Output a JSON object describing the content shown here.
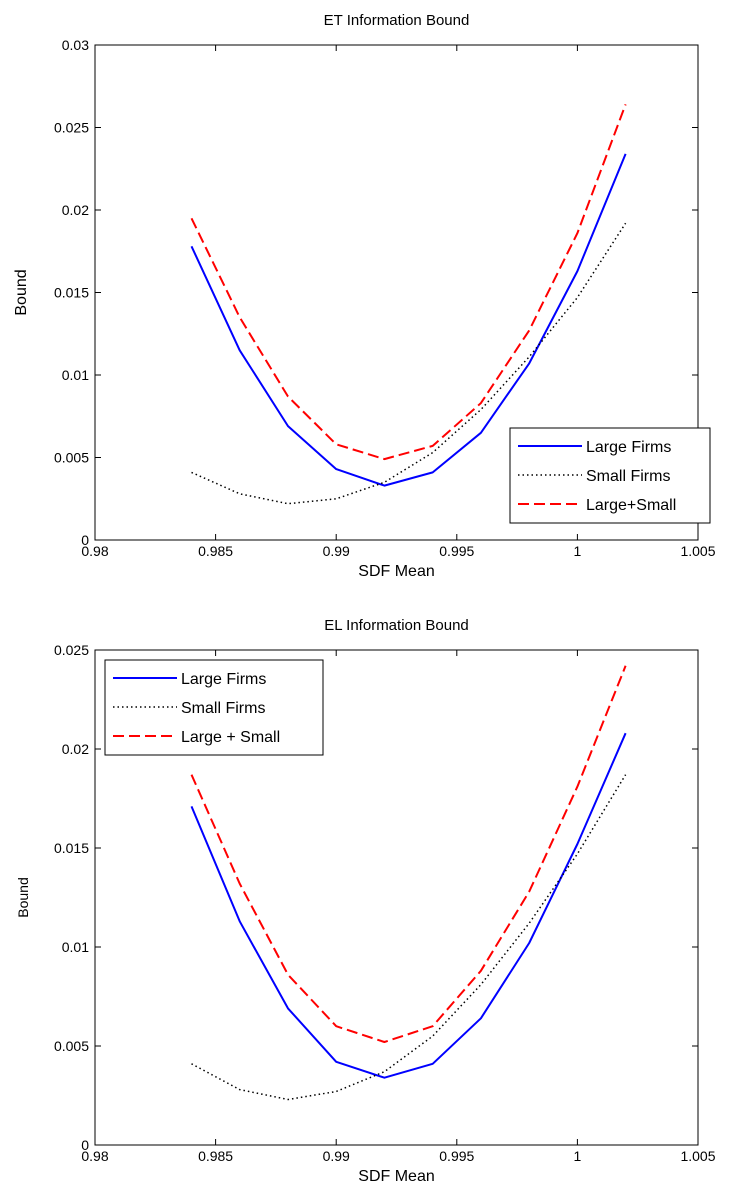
{
  "chart_data": [
    {
      "type": "line",
      "title": "ET Information Bound",
      "xlabel": "SDF Mean",
      "ylabel": "Bound",
      "xlim": [
        0.98,
        1.005
      ],
      "ylim": [
        0,
        0.03
      ],
      "xticks": [
        "0.98",
        "0.985",
        "0.99",
        "0.995",
        "1",
        "1.005"
      ],
      "yticks": [
        "0",
        "0.005",
        "0.01",
        "0.015",
        "0.02",
        "0.025",
        "0.03"
      ],
      "grid": false,
      "legend_position": "bottom-right",
      "x": [
        0.984,
        0.986,
        0.988,
        0.99,
        0.992,
        0.994,
        0.996,
        0.998,
        1.0,
        1.002
      ],
      "series": [
        {
          "name": "Large Firms",
          "color": "#0000ff",
          "style": "solid",
          "values": [
            0.0178,
            0.0115,
            0.0069,
            0.0043,
            0.0033,
            0.0041,
            0.0065,
            0.0107,
            0.0163,
            0.0234
          ]
        },
        {
          "name": "Small Firms",
          "color": "#000000",
          "style": "dotted",
          "values": [
            0.0041,
            0.0028,
            0.0022,
            0.0025,
            0.0035,
            0.0053,
            0.0079,
            0.0111,
            0.0147,
            0.0192
          ]
        },
        {
          "name": "Large+Small",
          "color": "#ff0000",
          "style": "dashed",
          "values": [
            0.0195,
            0.0135,
            0.0087,
            0.0058,
            0.0049,
            0.0057,
            0.0083,
            0.0127,
            0.0186,
            0.0264
          ]
        }
      ]
    },
    {
      "type": "line",
      "title": "EL Information Bound",
      "xlabel": "SDF Mean",
      "ylabel": "Bound",
      "xlim": [
        0.98,
        1.005
      ],
      "ylim": [
        0,
        0.025
      ],
      "xticks": [
        "0.98",
        "0.985",
        "0.99",
        "0.995",
        "1",
        "1.005"
      ],
      "yticks": [
        "0",
        "0.005",
        "0.01",
        "0.015",
        "0.02",
        "0.025"
      ],
      "grid": false,
      "legend_position": "top-left",
      "x": [
        0.984,
        0.986,
        0.988,
        0.99,
        0.992,
        0.994,
        0.996,
        0.998,
        1.0,
        1.002
      ],
      "series": [
        {
          "name": "Large Firms",
          "color": "#0000ff",
          "style": "solid",
          "values": [
            0.0171,
            0.0113,
            0.0069,
            0.0042,
            0.0034,
            0.0041,
            0.0064,
            0.0102,
            0.0152,
            0.0208
          ]
        },
        {
          "name": "Small Firms",
          "color": "#000000",
          "style": "dotted",
          "values": [
            0.0041,
            0.0028,
            0.0023,
            0.0027,
            0.0037,
            0.0055,
            0.0081,
            0.0112,
            0.0147,
            0.0187
          ]
        },
        {
          "name": "Large + Small",
          "color": "#ff0000",
          "style": "dashed",
          "values": [
            0.0187,
            0.0132,
            0.0086,
            0.006,
            0.0052,
            0.006,
            0.0088,
            0.0128,
            0.0181,
            0.0242
          ]
        }
      ]
    }
  ]
}
